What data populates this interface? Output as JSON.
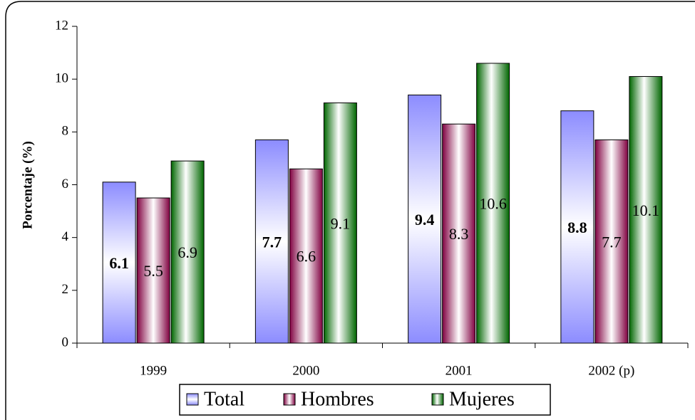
{
  "chart_data": {
    "type": "bar",
    "y_label": "Porcentaje (%)",
    "categories": [
      "1999",
      "2000",
      "2001",
      "2002 (p)"
    ],
    "series": [
      {
        "name": "Total",
        "color": "#8c8cff",
        "values": [
          6.1,
          7.7,
          9.4,
          8.8
        ]
      },
      {
        "name": "Hombres",
        "color": "#800040",
        "values": [
          5.5,
          6.6,
          8.3,
          7.7
        ]
      },
      {
        "name": "Mujeres",
        "color": "#006600",
        "values": [
          6.9,
          9.1,
          10.6,
          10.1
        ]
      }
    ],
    "ylim": [
      0,
      12
    ],
    "yticks": [
      0,
      2,
      4,
      6,
      8,
      10,
      12
    ]
  }
}
